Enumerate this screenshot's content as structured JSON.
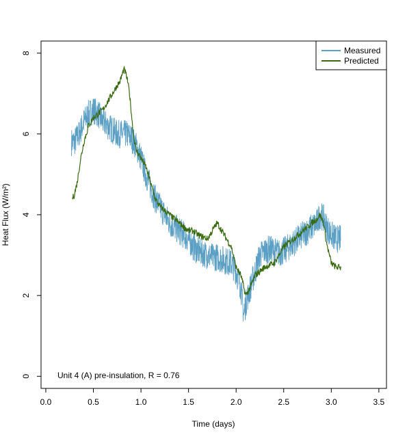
{
  "chart_data": {
    "type": "line",
    "xlabel": "Time (days)",
    "ylabel": "Heat Flux (W/m²)",
    "annotation": "Unit 4 (A) pre-insulation, R = 0.76",
    "xlim": [
      -0.05,
      3.58
    ],
    "ylim": [
      -0.3,
      8.3
    ],
    "xticks": [
      "0.0",
      "0.5",
      "1.0",
      "1.5",
      "2.0",
      "2.5",
      "3.0",
      "3.5"
    ],
    "yticks": [
      "0",
      "2",
      "4",
      "6",
      "8"
    ],
    "grid": false,
    "legend_position": "top-right",
    "legend": [
      "Measured",
      "Predicted"
    ],
    "series": [
      {
        "name": "Measured",
        "color": "#5b9fc4",
        "noise": 0.35,
        "x": [
          0.27,
          0.3,
          0.35,
          0.4,
          0.45,
          0.5,
          0.55,
          0.6,
          0.65,
          0.7,
          0.75,
          0.8,
          0.85,
          0.9,
          0.95,
          1.0,
          1.05,
          1.1,
          1.15,
          1.2,
          1.25,
          1.3,
          1.35,
          1.4,
          1.45,
          1.5,
          1.55,
          1.6,
          1.65,
          1.7,
          1.75,
          1.8,
          1.85,
          1.9,
          1.95,
          2.0,
          2.05,
          2.08,
          2.1,
          2.15,
          2.2,
          2.25,
          2.3,
          2.35,
          2.4,
          2.45,
          2.5,
          2.55,
          2.6,
          2.65,
          2.7,
          2.75,
          2.8,
          2.85,
          2.88,
          2.92,
          2.95,
          3.0,
          3.05,
          3.1
        ],
        "values": [
          5.8,
          5.8,
          6.0,
          6.3,
          6.5,
          6.6,
          6.5,
          6.3,
          6.2,
          6.1,
          6.0,
          6.0,
          6.0,
          5.9,
          5.7,
          5.4,
          5.0,
          4.7,
          4.4,
          4.2,
          4.0,
          3.8,
          3.7,
          3.6,
          3.5,
          3.4,
          3.2,
          3.1,
          3.05,
          3.0,
          2.95,
          2.95,
          2.9,
          2.85,
          2.8,
          2.6,
          2.2,
          1.5,
          1.8,
          2.2,
          2.6,
          3.0,
          3.1,
          3.15,
          3.1,
          3.05,
          3.1,
          3.2,
          3.3,
          3.4,
          3.5,
          3.6,
          3.7,
          3.8,
          4.0,
          3.9,
          3.7,
          3.5,
          3.4,
          3.4
        ]
      },
      {
        "name": "Predicted",
        "color": "#3a6b10",
        "noise": 0.08,
        "x": [
          0.28,
          0.3,
          0.33,
          0.36,
          0.4,
          0.45,
          0.5,
          0.55,
          0.6,
          0.65,
          0.7,
          0.75,
          0.78,
          0.82,
          0.84,
          0.86,
          0.88,
          0.9,
          0.92,
          0.95,
          1.0,
          1.05,
          1.1,
          1.15,
          1.2,
          1.3,
          1.4,
          1.5,
          1.55,
          1.6,
          1.7,
          1.8,
          1.85,
          1.9,
          1.95,
          2.0,
          2.05,
          2.1,
          2.15,
          2.2,
          2.3,
          2.4,
          2.5,
          2.6,
          2.7,
          2.8,
          2.85,
          2.88,
          2.92,
          2.95,
          3.0,
          3.05,
          3.1
        ],
        "values": [
          4.4,
          4.5,
          4.8,
          5.3,
          5.8,
          6.2,
          6.4,
          6.5,
          6.6,
          6.8,
          7.0,
          7.2,
          7.3,
          7.6,
          7.5,
          7.3,
          7.0,
          6.5,
          6.0,
          5.6,
          5.4,
          5.2,
          4.8,
          4.4,
          4.2,
          4.0,
          3.8,
          3.6,
          3.6,
          3.5,
          3.4,
          3.8,
          3.6,
          3.4,
          3.2,
          2.7,
          2.5,
          2.0,
          2.2,
          2.5,
          2.7,
          2.8,
          3.2,
          3.4,
          3.6,
          3.8,
          3.9,
          4.0,
          3.8,
          3.3,
          2.8,
          2.7,
          2.7
        ]
      }
    ]
  }
}
